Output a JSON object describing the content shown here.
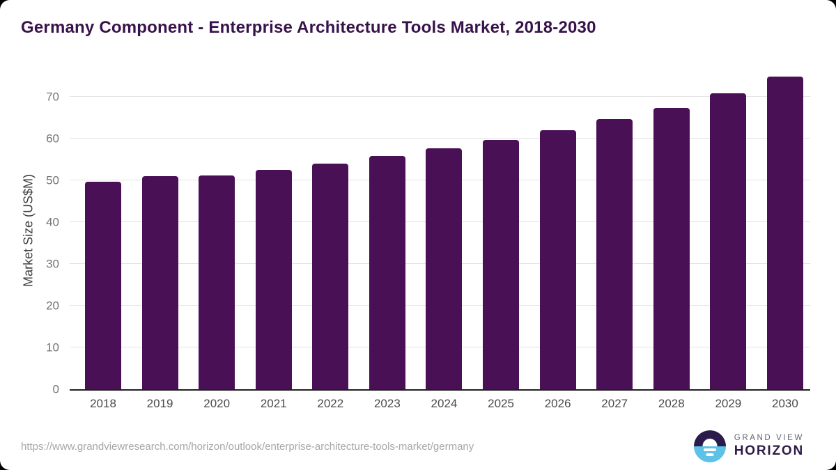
{
  "title": "Germany Component - Enterprise Architecture Tools Market, 2018-2030",
  "chart_data": {
    "type": "bar",
    "title": "Germany Component - Enterprise Architecture Tools Market, 2018-2030",
    "categories": [
      "2018",
      "2019",
      "2020",
      "2021",
      "2022",
      "2023",
      "2024",
      "2025",
      "2026",
      "2027",
      "2028",
      "2029",
      "2030"
    ],
    "values": [
      49.7,
      51.0,
      51.2,
      52.5,
      54.0,
      55.8,
      57.6,
      59.7,
      62.0,
      64.6,
      67.4,
      70.8,
      74.8
    ],
    "xlabel": "",
    "ylabel": "Market Size (US$M)",
    "yticks": [
      0,
      10,
      20,
      30,
      40,
      50,
      60,
      70
    ],
    "ylim": [
      0,
      76
    ],
    "grid": "horizontal",
    "legend": "none",
    "bar_style": "rounded-top"
  },
  "footer": {
    "url": "https://www.grandviewresearch.com/horizon/outlook/enterprise-architecture-tools-market/germany",
    "logo_top": "GRAND VIEW",
    "logo_bottom": "HORIZON"
  },
  "colors": {
    "bar": "#4a1056",
    "title": "#38124a",
    "grid": "#e3e3e3",
    "axis_line": "#1f1f1f",
    "tick_label": "#757575",
    "x_label": "#4a4a4a",
    "y_axis_title": "#404040",
    "url_text": "#a6a6a6",
    "logo_purple": "#2b1b4d",
    "logo_blue": "#5ec1e8",
    "logo_text_gray": "#63636f",
    "logo_text_purple": "#2e1a47"
  }
}
